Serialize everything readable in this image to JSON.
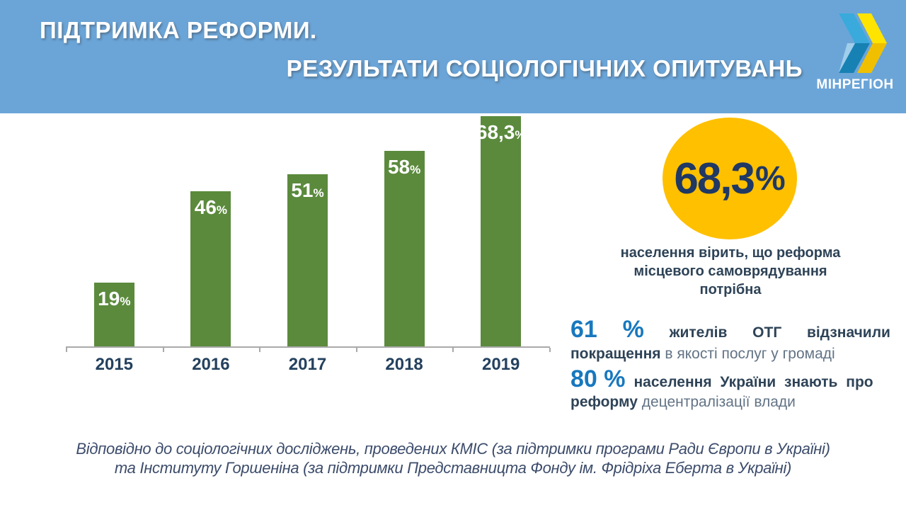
{
  "header": {
    "title_line1": "ПІДТРИМКА РЕФОРМИ.",
    "title_line2": "РЕЗУЛЬТАТИ СОЦІОЛОГІЧНИХ ОПИТУВАНЬ",
    "logo_text": "МІНРЕГІОН"
  },
  "chart_data": {
    "type": "bar",
    "categories": [
      "2015",
      "2016",
      "2017",
      "2018",
      "2019"
    ],
    "values": [
      19,
      46,
      51,
      58,
      68.3
    ],
    "value_labels": [
      "19",
      "46",
      "51",
      "58",
      "68,3"
    ],
    "percent_sign": "%",
    "title": "",
    "xlabel": "",
    "ylabel": "",
    "ylim": [
      0,
      70
    ],
    "grid": false,
    "legend": "none",
    "bar_color": "#5B8A3D",
    "axis_color": "#A9A9A9",
    "category_label_color": "#24415E"
  },
  "highlight": {
    "value": "68,3",
    "unit": "%",
    "caption_line1": "населення вірить, що реформа",
    "caption_line2": "місцевого  самоврядування",
    "caption_line3": "потрібна"
  },
  "stats": {
    "stat1": {
      "num": "61",
      "pct": "%",
      "words": [
        "жителів",
        "ОТГ",
        "відзначили"
      ],
      "line2_bold": "покращення",
      "line2_rest": " в якості послуг у громаді"
    },
    "stat2": {
      "num": "80 %",
      "line1_bold": "населення України знають про",
      "line2_bold": "реформу",
      "line2_rest": " децентралізації влади"
    }
  },
  "footer": {
    "line1": "Відповідно до соціологічних досліджень, проведених КМІС (за підтримки програми Ради Європи в Україні)",
    "line2": "та Інституту Горшеніна (за підтримки Представницта Фонду ім. Фрідріха Еберта в Україні)"
  },
  "colors": {
    "header_bg": "#6BA5D8",
    "bar_green": "#5B8A3D",
    "accent_yellow": "#FFC000",
    "navy_dark": "#1F3864",
    "navy_text": "#2E4357",
    "blue_number": "#1878BE"
  }
}
